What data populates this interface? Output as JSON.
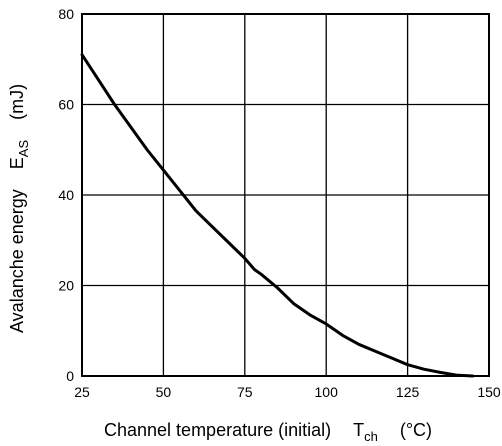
{
  "chart_data": {
    "type": "line",
    "xlabel": {
      "main": "Channel temperature (initial)",
      "symbol": "T",
      "symbol_sub": "ch",
      "unit": "(°C)"
    },
    "ylabel": {
      "main": "Avalanche energy",
      "symbol": "E",
      "symbol_sub": "AS",
      "unit": "(mJ)"
    },
    "xlim": [
      25,
      150
    ],
    "ylim": [
      0,
      80
    ],
    "x_ticks": [
      25,
      50,
      75,
      100,
      125,
      150
    ],
    "y_ticks": [
      0,
      20,
      40,
      60,
      80
    ],
    "grid": true,
    "series": [
      {
        "x": [
          25,
          30,
          35,
          40,
          45,
          50,
          55,
          60,
          65,
          70,
          75,
          78,
          80,
          85,
          90,
          95,
          100,
          105,
          110,
          115,
          120,
          125,
          130,
          135,
          140,
          145
        ],
        "y": [
          71,
          65.5,
          60,
          55,
          50,
          45.5,
          41,
          36.5,
          33,
          29.5,
          26,
          23.5,
          22.5,
          19.5,
          16,
          13.5,
          11.5,
          9,
          7,
          5.5,
          4,
          2.5,
          1.5,
          0.8,
          0.2,
          0
        ]
      }
    ]
  }
}
